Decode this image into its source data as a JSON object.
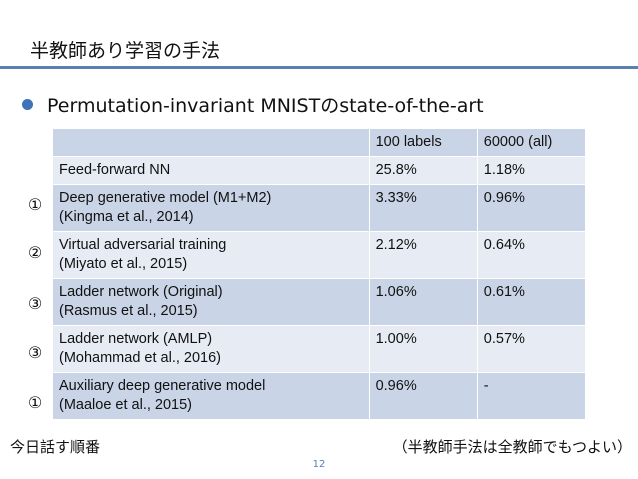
{
  "slide": {
    "title": "半教師あり学習の手法",
    "bullet": "Permutation-invariant MNISTのstate-of-the-art",
    "footer_left": "今日話す順番",
    "footer_right": "（半教師手法は全教師でもつよい）",
    "page_number": "12"
  },
  "table": {
    "headers": [
      "",
      "100 labels",
      "60000 (all)"
    ],
    "rows": [
      {
        "marker": "",
        "model": "Feed-forward NN",
        "citation": "",
        "labels_100": "25.8%",
        "labels_all": "1.18%"
      },
      {
        "marker": "①",
        "model": "Deep generative model (M1+M2)",
        "citation": "(Kingma et al., 2014)",
        "labels_100": "3.33%",
        "labels_all": "0.96%"
      },
      {
        "marker": "②",
        "model": "Virtual adversarial training",
        "citation": "(Miyato et al., 2015)",
        "labels_100": "2.12%",
        "labels_all": "0.64%"
      },
      {
        "marker": "③",
        "model": "Ladder network (Original)",
        "citation": "(Rasmus et al., 2015)",
        "labels_100": "1.06%",
        "labels_all": "0.61%"
      },
      {
        "marker": "③",
        "model": "Ladder network (AMLP)",
        "citation": "(Mohammad et al., 2016)",
        "labels_100": "1.00%",
        "labels_all": "0.57%"
      },
      {
        "marker": "①",
        "model": "Auxiliary deep generative model",
        "citation": "(Maaloe et al., 2015)",
        "labels_100": "0.96%",
        "labels_all": "-"
      }
    ]
  },
  "colors": {
    "accent": "#5b7fb5",
    "row_dark": "#c9d4e6",
    "row_light": "#e6ebf4"
  }
}
